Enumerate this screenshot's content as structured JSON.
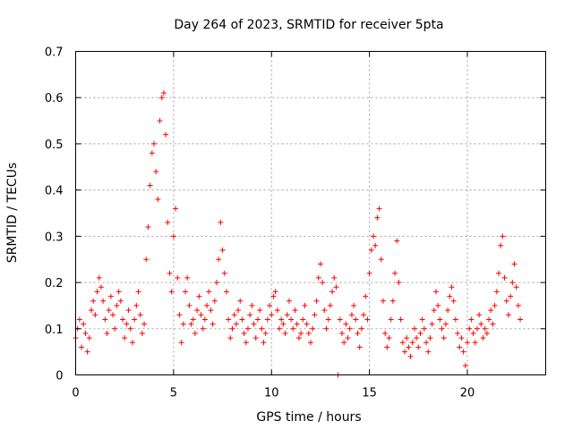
{
  "chart_data": {
    "type": "scatter",
    "title": "Day 264 of 2023, SRMTID for receiver 5pta",
    "xlabel": "GPS time / hours",
    "ylabel": "SRMTID / TECUs",
    "xlim": [
      0,
      24
    ],
    "ylim": [
      0,
      0.7
    ],
    "xticks": [
      0,
      5,
      10,
      15,
      20
    ],
    "xtick_labels": [
      "0",
      "5",
      "10",
      "15",
      "20"
    ],
    "yticks": [
      0,
      0.1,
      0.2,
      0.3,
      0.4,
      0.5,
      0.6,
      0.7
    ],
    "ytick_labels": [
      "0",
      "0.1",
      "0.2",
      "0.3",
      "0.4",
      "0.5",
      "0.6",
      "0.7"
    ],
    "grid": true,
    "marker": "plus",
    "color": "#ff0000",
    "series": [
      {
        "name": "SRMTID",
        "x": [
          0.0,
          0.1,
          0.2,
          0.3,
          0.4,
          0.5,
          0.6,
          0.7,
          0.8,
          0.9,
          1.0,
          1.1,
          1.2,
          1.3,
          1.4,
          1.5,
          1.6,
          1.7,
          1.8,
          1.9,
          2.0,
          2.1,
          2.2,
          2.3,
          2.4,
          2.5,
          2.6,
          2.7,
          2.8,
          2.9,
          3.0,
          3.1,
          3.2,
          3.3,
          3.4,
          3.5,
          3.6,
          3.7,
          3.8,
          3.9,
          4.0,
          4.1,
          4.2,
          4.3,
          4.4,
          4.5,
          4.6,
          4.7,
          4.8,
          4.9,
          5.0,
          5.1,
          5.2,
          5.3,
          5.4,
          5.5,
          5.6,
          5.7,
          5.8,
          5.9,
          6.0,
          6.1,
          6.2,
          6.3,
          6.4,
          6.5,
          6.6,
          6.7,
          6.8,
          6.9,
          7.0,
          7.1,
          7.2,
          7.3,
          7.4,
          7.5,
          7.6,
          7.7,
          7.8,
          7.9,
          8.0,
          8.1,
          8.2,
          8.3,
          8.4,
          8.5,
          8.6,
          8.7,
          8.8,
          8.9,
          9.0,
          9.1,
          9.2,
          9.3,
          9.4,
          9.5,
          9.6,
          9.7,
          9.8,
          9.9,
          10.0,
          10.1,
          10.2,
          10.3,
          10.4,
          10.5,
          10.6,
          10.7,
          10.8,
          10.9,
          11.0,
          11.1,
          11.2,
          11.3,
          11.4,
          11.5,
          11.6,
          11.7,
          11.8,
          11.9,
          12.0,
          12.1,
          12.2,
          12.3,
          12.4,
          12.5,
          12.6,
          12.7,
          12.8,
          12.9,
          13.0,
          13.1,
          13.2,
          13.3,
          13.4,
          13.5,
          13.6,
          13.7,
          13.8,
          13.9,
          14.0,
          14.1,
          14.2,
          14.3,
          14.4,
          14.5,
          14.6,
          14.7,
          14.8,
          14.9,
          15.0,
          15.1,
          15.2,
          15.3,
          15.4,
          15.5,
          15.6,
          15.7,
          15.8,
          15.9,
          16.0,
          16.1,
          16.2,
          16.3,
          16.4,
          16.5,
          16.6,
          16.7,
          16.8,
          16.9,
          17.0,
          17.1,
          17.2,
          17.3,
          17.4,
          17.5,
          17.6,
          17.7,
          17.8,
          17.9,
          18.0,
          18.1,
          18.2,
          18.3,
          18.4,
          18.5,
          18.6,
          18.7,
          18.8,
          18.9,
          19.0,
          19.1,
          19.2,
          19.3,
          19.4,
          19.5,
          19.6,
          19.7,
          19.8,
          19.9,
          20.0,
          20.1,
          20.2,
          20.3,
          20.4,
          20.5,
          20.6,
          20.7,
          20.8,
          20.9,
          21.0,
          21.1,
          21.2,
          21.3,
          21.4,
          21.5,
          21.6,
          21.7,
          21.8,
          21.9,
          22.0,
          22.1,
          22.2,
          22.3,
          22.4,
          22.5,
          22.6,
          22.7
        ],
        "y": [
          0.08,
          0.1,
          0.12,
          0.06,
          0.11,
          0.09,
          0.05,
          0.08,
          0.14,
          0.16,
          0.13,
          0.18,
          0.21,
          0.19,
          0.16,
          0.12,
          0.09,
          0.14,
          0.17,
          0.13,
          0.1,
          0.15,
          0.18,
          0.16,
          0.12,
          0.08,
          0.11,
          0.14,
          0.1,
          0.07,
          0.12,
          0.15,
          0.18,
          0.13,
          0.09,
          0.11,
          0.25,
          0.32,
          0.41,
          0.48,
          0.5,
          0.44,
          0.38,
          0.55,
          0.6,
          0.61,
          0.52,
          0.33,
          0.22,
          0.18,
          0.3,
          0.36,
          0.21,
          0.13,
          0.07,
          0.11,
          0.18,
          0.21,
          0.15,
          0.11,
          0.12,
          0.09,
          0.14,
          0.17,
          0.13,
          0.1,
          0.12,
          0.15,
          0.18,
          0.14,
          0.11,
          0.16,
          0.2,
          0.25,
          0.33,
          0.27,
          0.22,
          0.18,
          0.12,
          0.08,
          0.1,
          0.13,
          0.11,
          0.14,
          0.16,
          0.12,
          0.09,
          0.07,
          0.1,
          0.13,
          0.15,
          0.11,
          0.08,
          0.12,
          0.14,
          0.1,
          0.07,
          0.09,
          0.12,
          0.15,
          0.13,
          0.17,
          0.18,
          0.14,
          0.1,
          0.12,
          0.11,
          0.09,
          0.13,
          0.16,
          0.12,
          0.1,
          0.14,
          0.11,
          0.08,
          0.09,
          0.12,
          0.15,
          0.11,
          0.09,
          0.07,
          0.1,
          0.13,
          0.16,
          0.21,
          0.24,
          0.2,
          0.14,
          0.1,
          0.12,
          0.15,
          0.18,
          0.21,
          0.19,
          0.0,
          0.12,
          0.09,
          0.07,
          0.11,
          0.08,
          0.1,
          0.13,
          0.15,
          0.12,
          0.09,
          0.06,
          0.1,
          0.13,
          0.17,
          0.12,
          0.22,
          0.27,
          0.3,
          0.28,
          0.34,
          0.36,
          0.25,
          0.16,
          0.09,
          0.06,
          0.08,
          0.12,
          0.16,
          0.22,
          0.29,
          0.2,
          0.12,
          0.07,
          0.05,
          0.08,
          0.06,
          0.04,
          0.07,
          0.1,
          0.08,
          0.06,
          0.09,
          0.12,
          0.1,
          0.07,
          0.05,
          0.08,
          0.11,
          0.14,
          0.18,
          0.15,
          0.12,
          0.1,
          0.08,
          0.11,
          0.14,
          0.17,
          0.19,
          0.16,
          0.12,
          0.09,
          0.06,
          0.08,
          0.05,
          0.02,
          0.07,
          0.1,
          0.12,
          0.09,
          0.07,
          0.1,
          0.13,
          0.11,
          0.08,
          0.1,
          0.09,
          0.12,
          0.14,
          0.11,
          0.15,
          0.18,
          0.22,
          0.28,
          0.3,
          0.21,
          0.16,
          0.13,
          0.17,
          0.2,
          0.24,
          0.19,
          0.15,
          0.12
        ]
      }
    ]
  }
}
